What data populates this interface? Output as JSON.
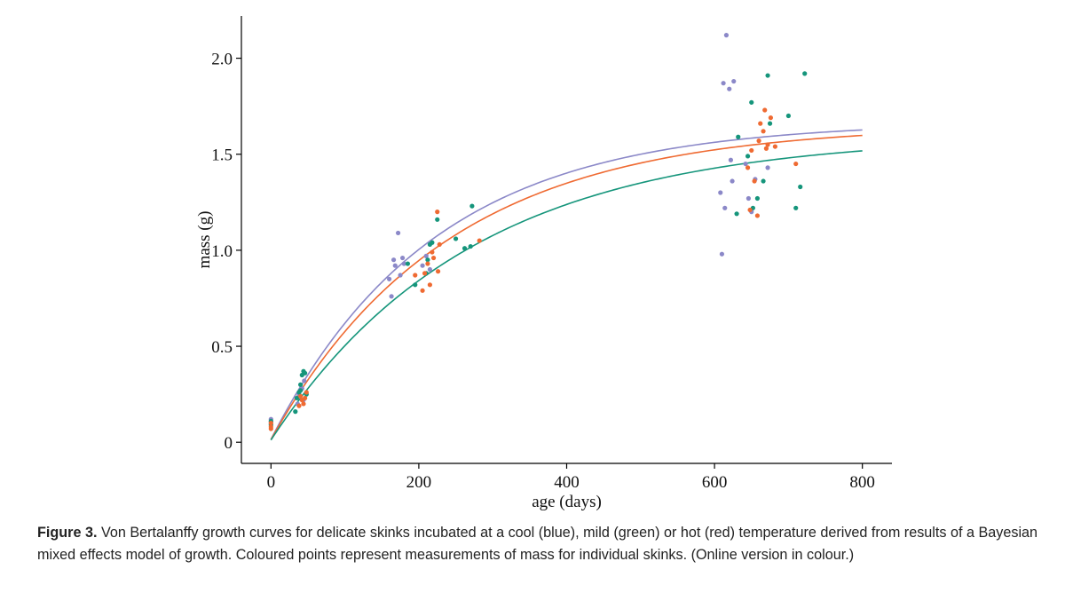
{
  "chart_data": {
    "type": "scatter",
    "title": "",
    "xlabel": "age (days)",
    "ylabel": "mass (g)",
    "xlim": [
      -40,
      840
    ],
    "ylim": [
      -0.11,
      2.22
    ],
    "xticks": [
      0,
      200,
      400,
      600,
      800
    ],
    "xtick_labels": [
      "0",
      "200",
      "400",
      "600",
      "800"
    ],
    "yticks": [
      0,
      0.5,
      1.0,
      1.5,
      2.0
    ],
    "ytick_labels": [
      "0",
      "0.5",
      "1.0",
      "1.5",
      "2.0"
    ],
    "grid": false,
    "legend": "none",
    "curves": [
      {
        "group": "cool",
        "color": "#8b88c8",
        "asymptote": 1.67,
        "rate": 0.00455,
        "t0": -2,
        "x_range": [
          0,
          800
        ]
      },
      {
        "group": "hot",
        "color": "#ef6a32",
        "asymptote": 1.655,
        "rate": 0.0042,
        "t0": -2,
        "x_range": [
          0,
          800
        ]
      },
      {
        "group": "mild",
        "color": "#15957b",
        "asymptote": 1.6,
        "rate": 0.0037,
        "t0": -2,
        "x_range": [
          0,
          800
        ]
      }
    ],
    "series": [
      {
        "group": "cool",
        "color": "#8b88c8",
        "points": [
          [
            0,
            0.12
          ],
          [
            0,
            0.11
          ],
          [
            0,
            0.1
          ],
          [
            38,
            0.25
          ],
          [
            40,
            0.3
          ],
          [
            42,
            0.28
          ],
          [
            44,
            0.22
          ],
          [
            45,
            0.32
          ],
          [
            36,
            0.2
          ],
          [
            160,
            0.85
          ],
          [
            163,
            0.76
          ],
          [
            166,
            0.95
          ],
          [
            168,
            0.92
          ],
          [
            172,
            1.09
          ],
          [
            175,
            0.87
          ],
          [
            178,
            0.96
          ],
          [
            180,
            0.93
          ],
          [
            205,
            0.92
          ],
          [
            210,
            0.97
          ],
          [
            215,
            0.9
          ],
          [
            608,
            1.3
          ],
          [
            610,
            0.98
          ],
          [
            612,
            1.87
          ],
          [
            614,
            1.22
          ],
          [
            616,
            2.12
          ],
          [
            620,
            1.84
          ],
          [
            622,
            1.47
          ],
          [
            624,
            1.36
          ],
          [
            626,
            1.88
          ],
          [
            642,
            1.45
          ],
          [
            646,
            1.27
          ],
          [
            650,
            1.2
          ],
          [
            655,
            1.37
          ],
          [
            672,
            1.43
          ]
        ]
      },
      {
        "group": "mild",
        "color": "#15957b",
        "points": [
          [
            0,
            0.11
          ],
          [
            0,
            0.09
          ],
          [
            33,
            0.16
          ],
          [
            35,
            0.23
          ],
          [
            38,
            0.26
          ],
          [
            40,
            0.3
          ],
          [
            42,
            0.35
          ],
          [
            44,
            0.37
          ],
          [
            46,
            0.36
          ],
          [
            48,
            0.25
          ],
          [
            40,
            0.27
          ],
          [
            185,
            0.93
          ],
          [
            195,
            0.82
          ],
          [
            210,
            0.88
          ],
          [
            212,
            0.95
          ],
          [
            215,
            1.03
          ],
          [
            218,
            1.04
          ],
          [
            225,
            1.16
          ],
          [
            250,
            1.06
          ],
          [
            262,
            1.01
          ],
          [
            270,
            1.02
          ],
          [
            272,
            1.23
          ],
          [
            630,
            1.19
          ],
          [
            632,
            1.59
          ],
          [
            645,
            1.49
          ],
          [
            650,
            1.77
          ],
          [
            652,
            1.22
          ],
          [
            658,
            1.27
          ],
          [
            666,
            1.36
          ],
          [
            672,
            1.91
          ],
          [
            675,
            1.66
          ],
          [
            700,
            1.7
          ],
          [
            710,
            1.22
          ],
          [
            716,
            1.33
          ],
          [
            722,
            1.92
          ]
        ]
      },
      {
        "group": "hot",
        "color": "#ef6a32",
        "points": [
          [
            0,
            0.1
          ],
          [
            0,
            0.08
          ],
          [
            0,
            0.07
          ],
          [
            38,
            0.19
          ],
          [
            40,
            0.24
          ],
          [
            42,
            0.22
          ],
          [
            44,
            0.2
          ],
          [
            46,
            0.23
          ],
          [
            48,
            0.26
          ],
          [
            195,
            0.87
          ],
          [
            205,
            0.79
          ],
          [
            208,
            0.88
          ],
          [
            212,
            0.93
          ],
          [
            215,
            0.82
          ],
          [
            218,
            0.99
          ],
          [
            220,
            0.96
          ],
          [
            225,
            1.2
          ],
          [
            226,
            0.89
          ],
          [
            228,
            1.03
          ],
          [
            282,
            1.05
          ],
          [
            645,
            1.43
          ],
          [
            648,
            1.21
          ],
          [
            650,
            1.52
          ],
          [
            654,
            1.36
          ],
          [
            658,
            1.18
          ],
          [
            660,
            1.57
          ],
          [
            662,
            1.66
          ],
          [
            666,
            1.62
          ],
          [
            668,
            1.73
          ],
          [
            670,
            1.53
          ],
          [
            672,
            1.55
          ],
          [
            676,
            1.69
          ],
          [
            682,
            1.54
          ],
          [
            710,
            1.45
          ]
        ]
      }
    ]
  },
  "caption": {
    "lead": "Figure 3.",
    "text": " Von Bertalanffy growth curves for delicate skinks incubated at a cool (blue), mild (green) or hot (red) temperature derived from results of a Bayesian mixed effects model of growth. Coloured points represent measurements of mass for individual skinks. (Online version in colour.)"
  }
}
